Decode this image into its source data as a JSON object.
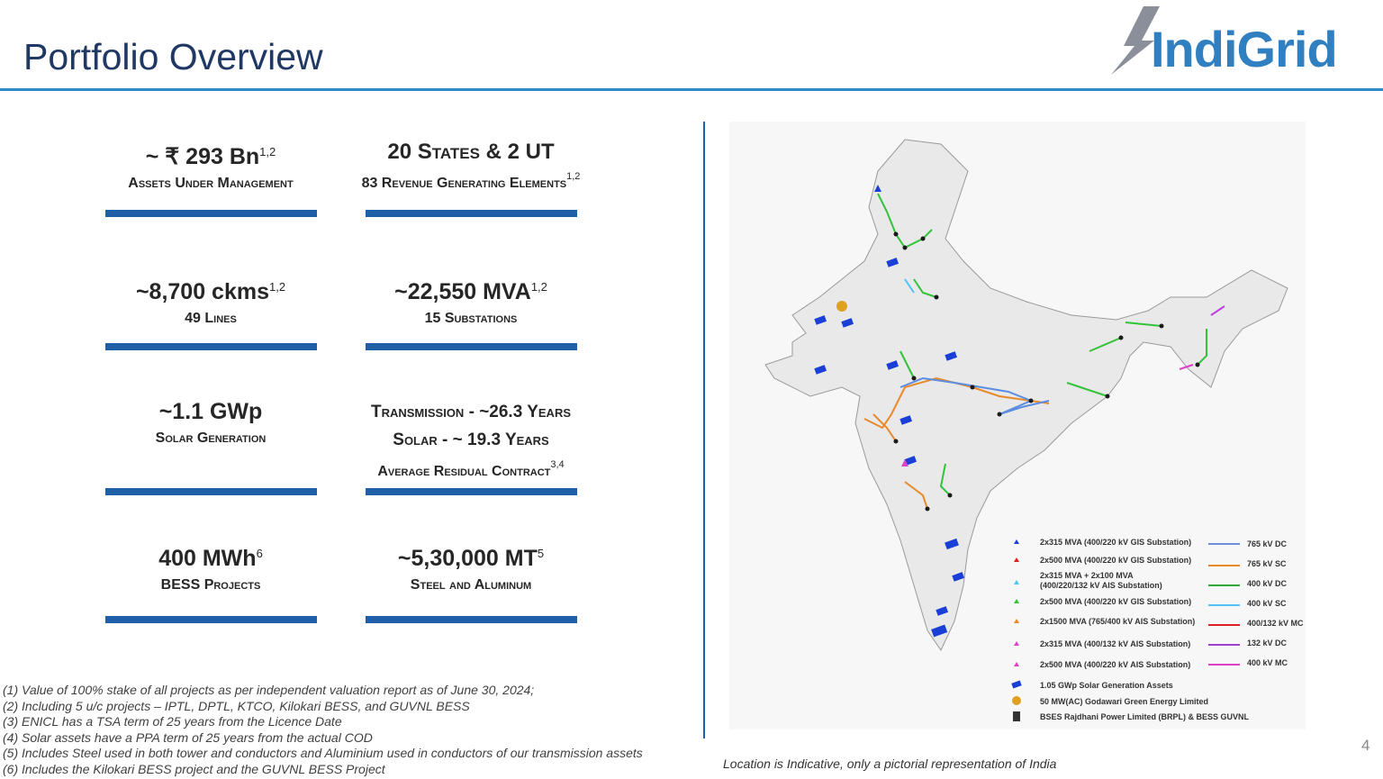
{
  "header": {
    "title": "Portfolio Overview",
    "logo": "IndiGrid"
  },
  "metrics": [
    {
      "headline": "~ ₹ 293 Bn",
      "headline_sup": "1,2",
      "caption": "Assets Under Management"
    },
    {
      "headline": "20 States & 2 UT",
      "caption": "83 Revenue Generating Elements",
      "caption_sup": "1,2"
    },
    {
      "headline": "~8,700 ckms",
      "headline_sup": "1,2",
      "caption": "49 Lines"
    },
    {
      "headline": "~22,550 MVA",
      "headline_sup": "1,2",
      "caption": "15 Substations"
    },
    {
      "headline": "~1.1 GWp",
      "caption": "Solar Generation"
    },
    {
      "headline_lines": [
        "Transmission - ~26.3 Years",
        "Solar - ~ 19.3 Years"
      ],
      "caption": "Average Residual Contract",
      "caption_sup": "3,4"
    },
    {
      "headline": "400 MWh",
      "headline_sup": "6",
      "caption": "BESS Projects"
    },
    {
      "headline": "~5,30,000 MT",
      "headline_sup": "5",
      "caption": "Steel and Aluminum"
    }
  ],
  "footnotes": [
    "(1) Value of 100% stake of all projects as per independent valuation report as of June 30, 2024;",
    "(2) Including 5 u/c projects – IPTL, DPTL, KTCO, Kilokari BESS, and GUVNL BESS",
    "(3) ENICL has a TSA term of 25 years from the Licence Date",
    "(4) Solar assets have a PPA term of 25 years from the actual COD",
    "(5) Includes Steel used in both tower and conductors and Aluminium used in conductors of our transmission assets",
    "(6) Includes the Kilokari BESS project and the GUVNL BESS Project"
  ],
  "map": {
    "legend_markers": [
      "2x315 MVA (400/220 kV GIS Substation)",
      "2x500 MVA (400/220 kV GIS Substation)",
      "2x315 MVA + 2x100 MVA\n(400/220/132 kV AIS Substation)",
      "2x500 MVA (400/220 kV GIS Substation)",
      "2x1500 MVA (765/400 kV AIS Substation)",
      "2x315 MVA (400/132 kV AIS Substation)",
      "2x500 MVA (400/220 kV AIS Substation)",
      "1.05 GWp Solar Generation Assets",
      "50 MW(AC) Godawari Green Energy Limited",
      "BSES Rajdhani Power Limited (BRPL) & BESS GUVNL"
    ],
    "legend_lines": [
      "765 kV DC",
      "765 kV SC",
      "400 kV DC",
      "400 kV SC",
      "400/132 kV MC",
      "132 kV DC",
      "400 kV MC"
    ],
    "caption": "Location is Indicative, only a pictorial representation of India"
  },
  "page_number": "4"
}
